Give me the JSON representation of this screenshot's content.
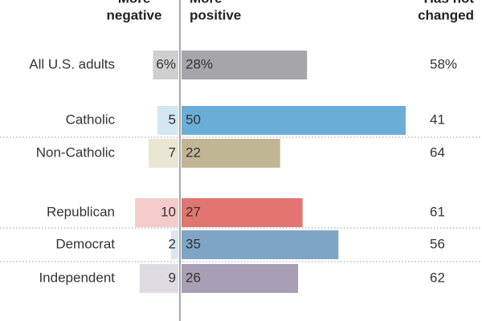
{
  "chart_data": {
    "type": "diverging-bar",
    "headers": [
      [
        "More",
        "negative"
      ],
      [
        "More",
        "positive"
      ],
      [
        "Has not",
        "changed"
      ]
    ],
    "categories": [
      "All U.S. adults",
      "Catholic",
      "Non-Catholic",
      "Republican",
      "Democrat",
      "Independent"
    ],
    "series": [
      {
        "name": "More negative",
        "values": [
          6,
          5,
          7,
          10,
          2,
          9
        ],
        "value_labels": [
          "6%",
          "5",
          "7",
          "10",
          "2",
          "9"
        ],
        "colors": [
          "#cfcfd0",
          "#d2e6f4",
          "#eae6d4",
          "#f4cbc9",
          "#d9e7f1",
          "#dedce2"
        ]
      },
      {
        "name": "More positive",
        "values": [
          28,
          50,
          22,
          27,
          35,
          26
        ],
        "value_labels": [
          "28%",
          "50",
          "22",
          "27",
          "35",
          "26"
        ],
        "colors": [
          "#a6a6a9",
          "#6aaed8",
          "#c1b694",
          "#e2756f",
          "#7ea5c5",
          "#a99fb4"
        ]
      },
      {
        "name": "Has not changed",
        "values": [
          58,
          41,
          64,
          61,
          56,
          62
        ],
        "value_labels": [
          "58%",
          "41",
          "64",
          "61",
          "56",
          "62"
        ]
      }
    ],
    "xlim": [
      -10,
      50
    ]
  }
}
